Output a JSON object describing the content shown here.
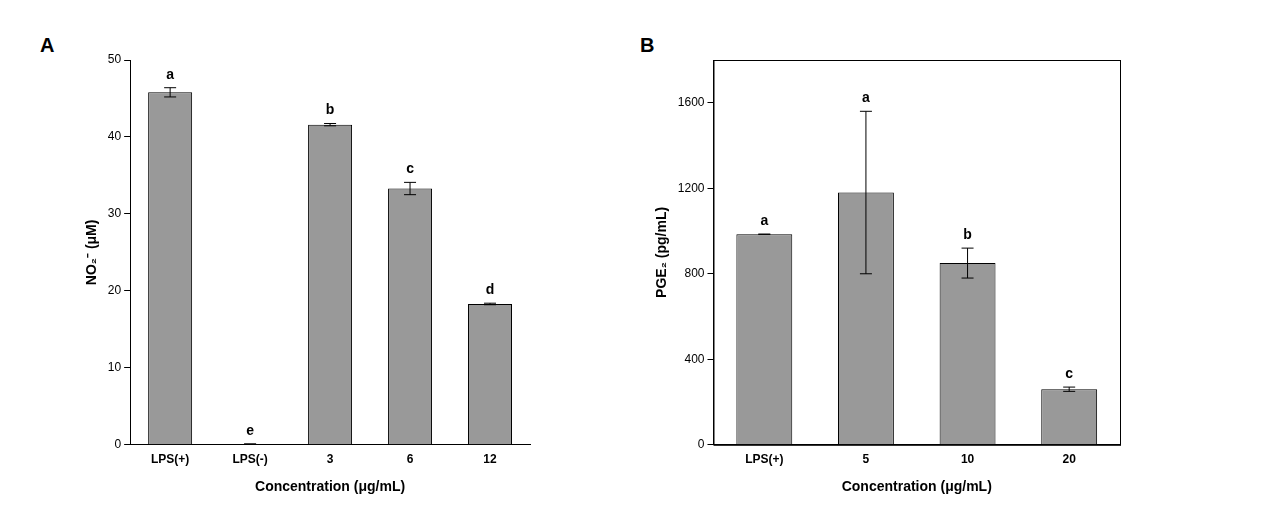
{
  "chart_data": [
    {
      "type": "bar",
      "title": "A",
      "categories": [
        "LPS(+)",
        "LPS(-)",
        "3",
        "6",
        "12"
      ],
      "values": [
        45.8,
        0.1,
        41.6,
        33.3,
        18.3
      ],
      "errors": [
        0.6,
        0,
        0.15,
        0.8,
        0.1
      ],
      "significance_letters": [
        "a",
        "e",
        "b",
        "c",
        "d"
      ],
      "x_label": "Concentration (μg/mL)",
      "y_label": "NO₂⁻ (μM)",
      "color": "#999999",
      "ylim": [
        0,
        50
      ],
      "yticks": [
        0,
        10,
        20,
        30,
        40,
        50
      ],
      "grid": false
    },
    {
      "type": "bar",
      "title": "B",
      "categories": [
        "LPS(+)",
        "5",
        "10",
        "20"
      ],
      "values": [
        985,
        1180,
        850,
        260
      ],
      "errors": [
        0,
        380,
        70,
        10
      ],
      "significance_letters": [
        "a",
        "a",
        "b",
        "c"
      ],
      "x_label": "Concentration (μg/mL)",
      "y_label": "PGE₂ (pg/mL)",
      "color": "#999999",
      "ylim": [
        0,
        1800
      ],
      "yticks": [
        0,
        400,
        800,
        1200,
        1600
      ],
      "grid": false
    }
  ]
}
